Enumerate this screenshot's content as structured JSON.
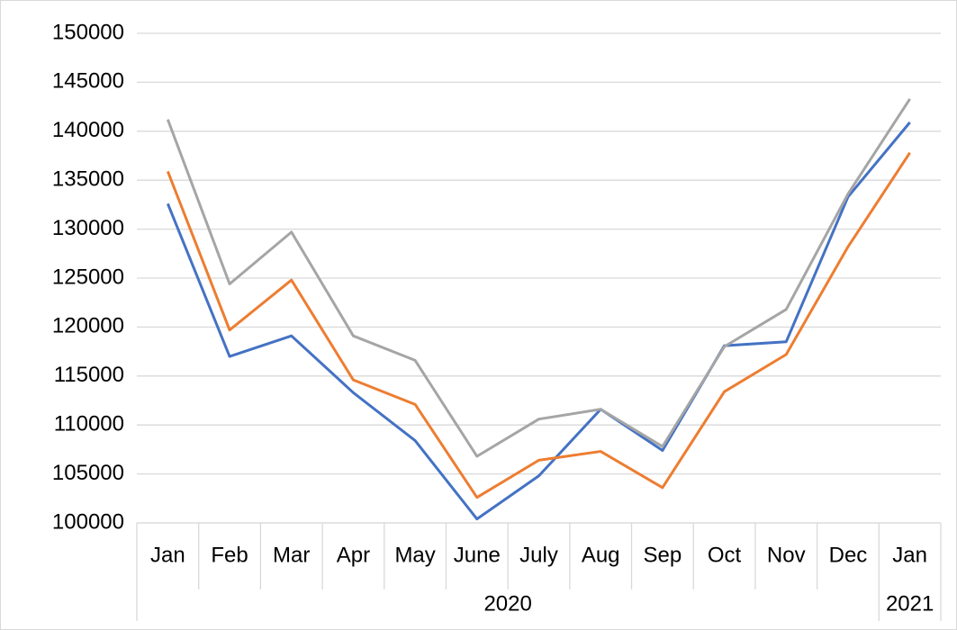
{
  "chart_data": {
    "type": "line",
    "categories": [
      "Jan",
      "Feb",
      "Mar",
      "Apr",
      "May",
      "June",
      "July",
      "Aug",
      "Sep",
      "Oct",
      "Nov",
      "Dec",
      "Jan"
    ],
    "category_years": [
      "2020",
      "2020",
      "2020",
      "2020",
      "2020",
      "2020",
      "2020",
      "2020",
      "2020",
      "2020",
      "2020",
      "2020",
      "2021"
    ],
    "series": [
      {
        "color": "#4472c4",
        "values": [
          132600,
          117000,
          119100,
          113300,
          108400,
          100400,
          104800,
          111600,
          107400,
          118100,
          118500,
          133300,
          140900
        ]
      },
      {
        "color": "#ed7d31",
        "values": [
          135900,
          119700,
          124800,
          114600,
          112100,
          102600,
          106400,
          107300,
          103600,
          113400,
          117200,
          128200,
          137800
        ]
      },
      {
        "color": "#a5a5a5",
        "values": [
          141200,
          124400,
          129700,
          119100,
          116600,
          106800,
          110600,
          111600,
          107800,
          118000,
          121800,
          133600,
          143300
        ]
      }
    ],
    "ylim": [
      100000,
      150000
    ],
    "yticks": [
      100000,
      105000,
      110000,
      115000,
      120000,
      125000,
      130000,
      135000,
      140000,
      145000,
      150000
    ],
    "grid": true
  }
}
